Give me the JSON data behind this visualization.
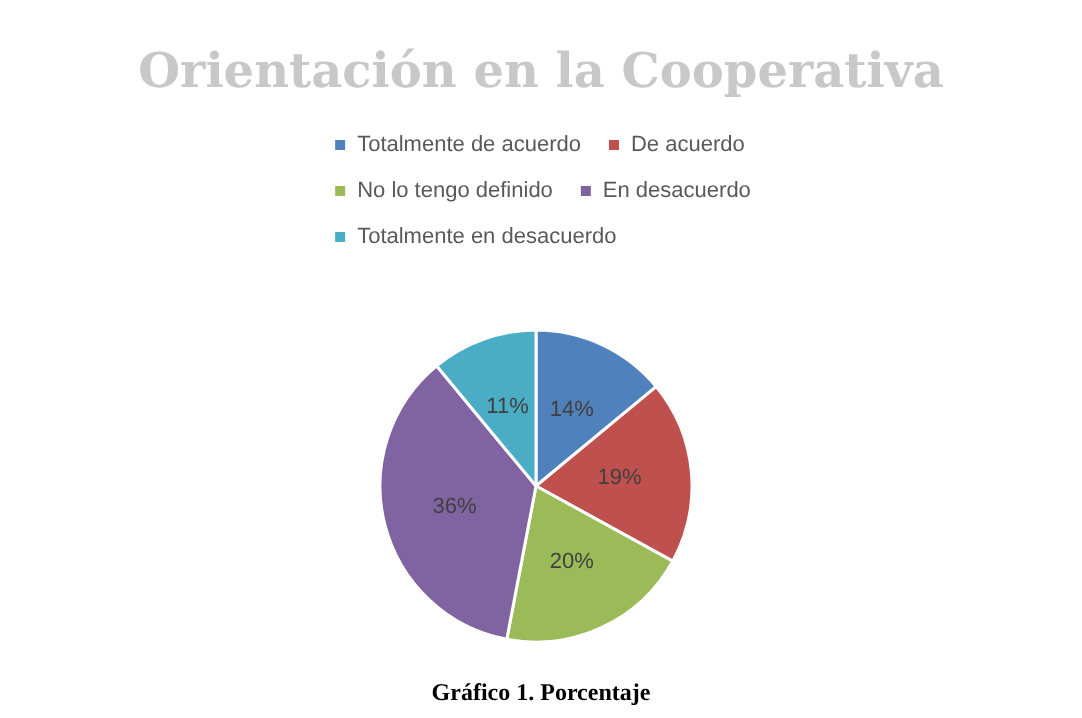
{
  "chart_data": {
    "type": "pie",
    "title": "Orientación en la Cooperativa",
    "categories": [
      "Totalmente de acuerdo",
      "De acuerdo",
      "No lo tengo definido",
      "En desacuerdo",
      "Totalmente en desacuerdo"
    ],
    "values": [
      14,
      19,
      20,
      36,
      11
    ],
    "colors": [
      "#4f81bd",
      "#c0504d",
      "#9bbb59",
      "#8064a2",
      "#4bacc6"
    ],
    "value_labels": [
      "14%",
      "19%",
      "20%",
      "36%",
      "11%"
    ],
    "legend": "top",
    "annotations": [
      "Gráfico 1. Porcentaje"
    ]
  }
}
